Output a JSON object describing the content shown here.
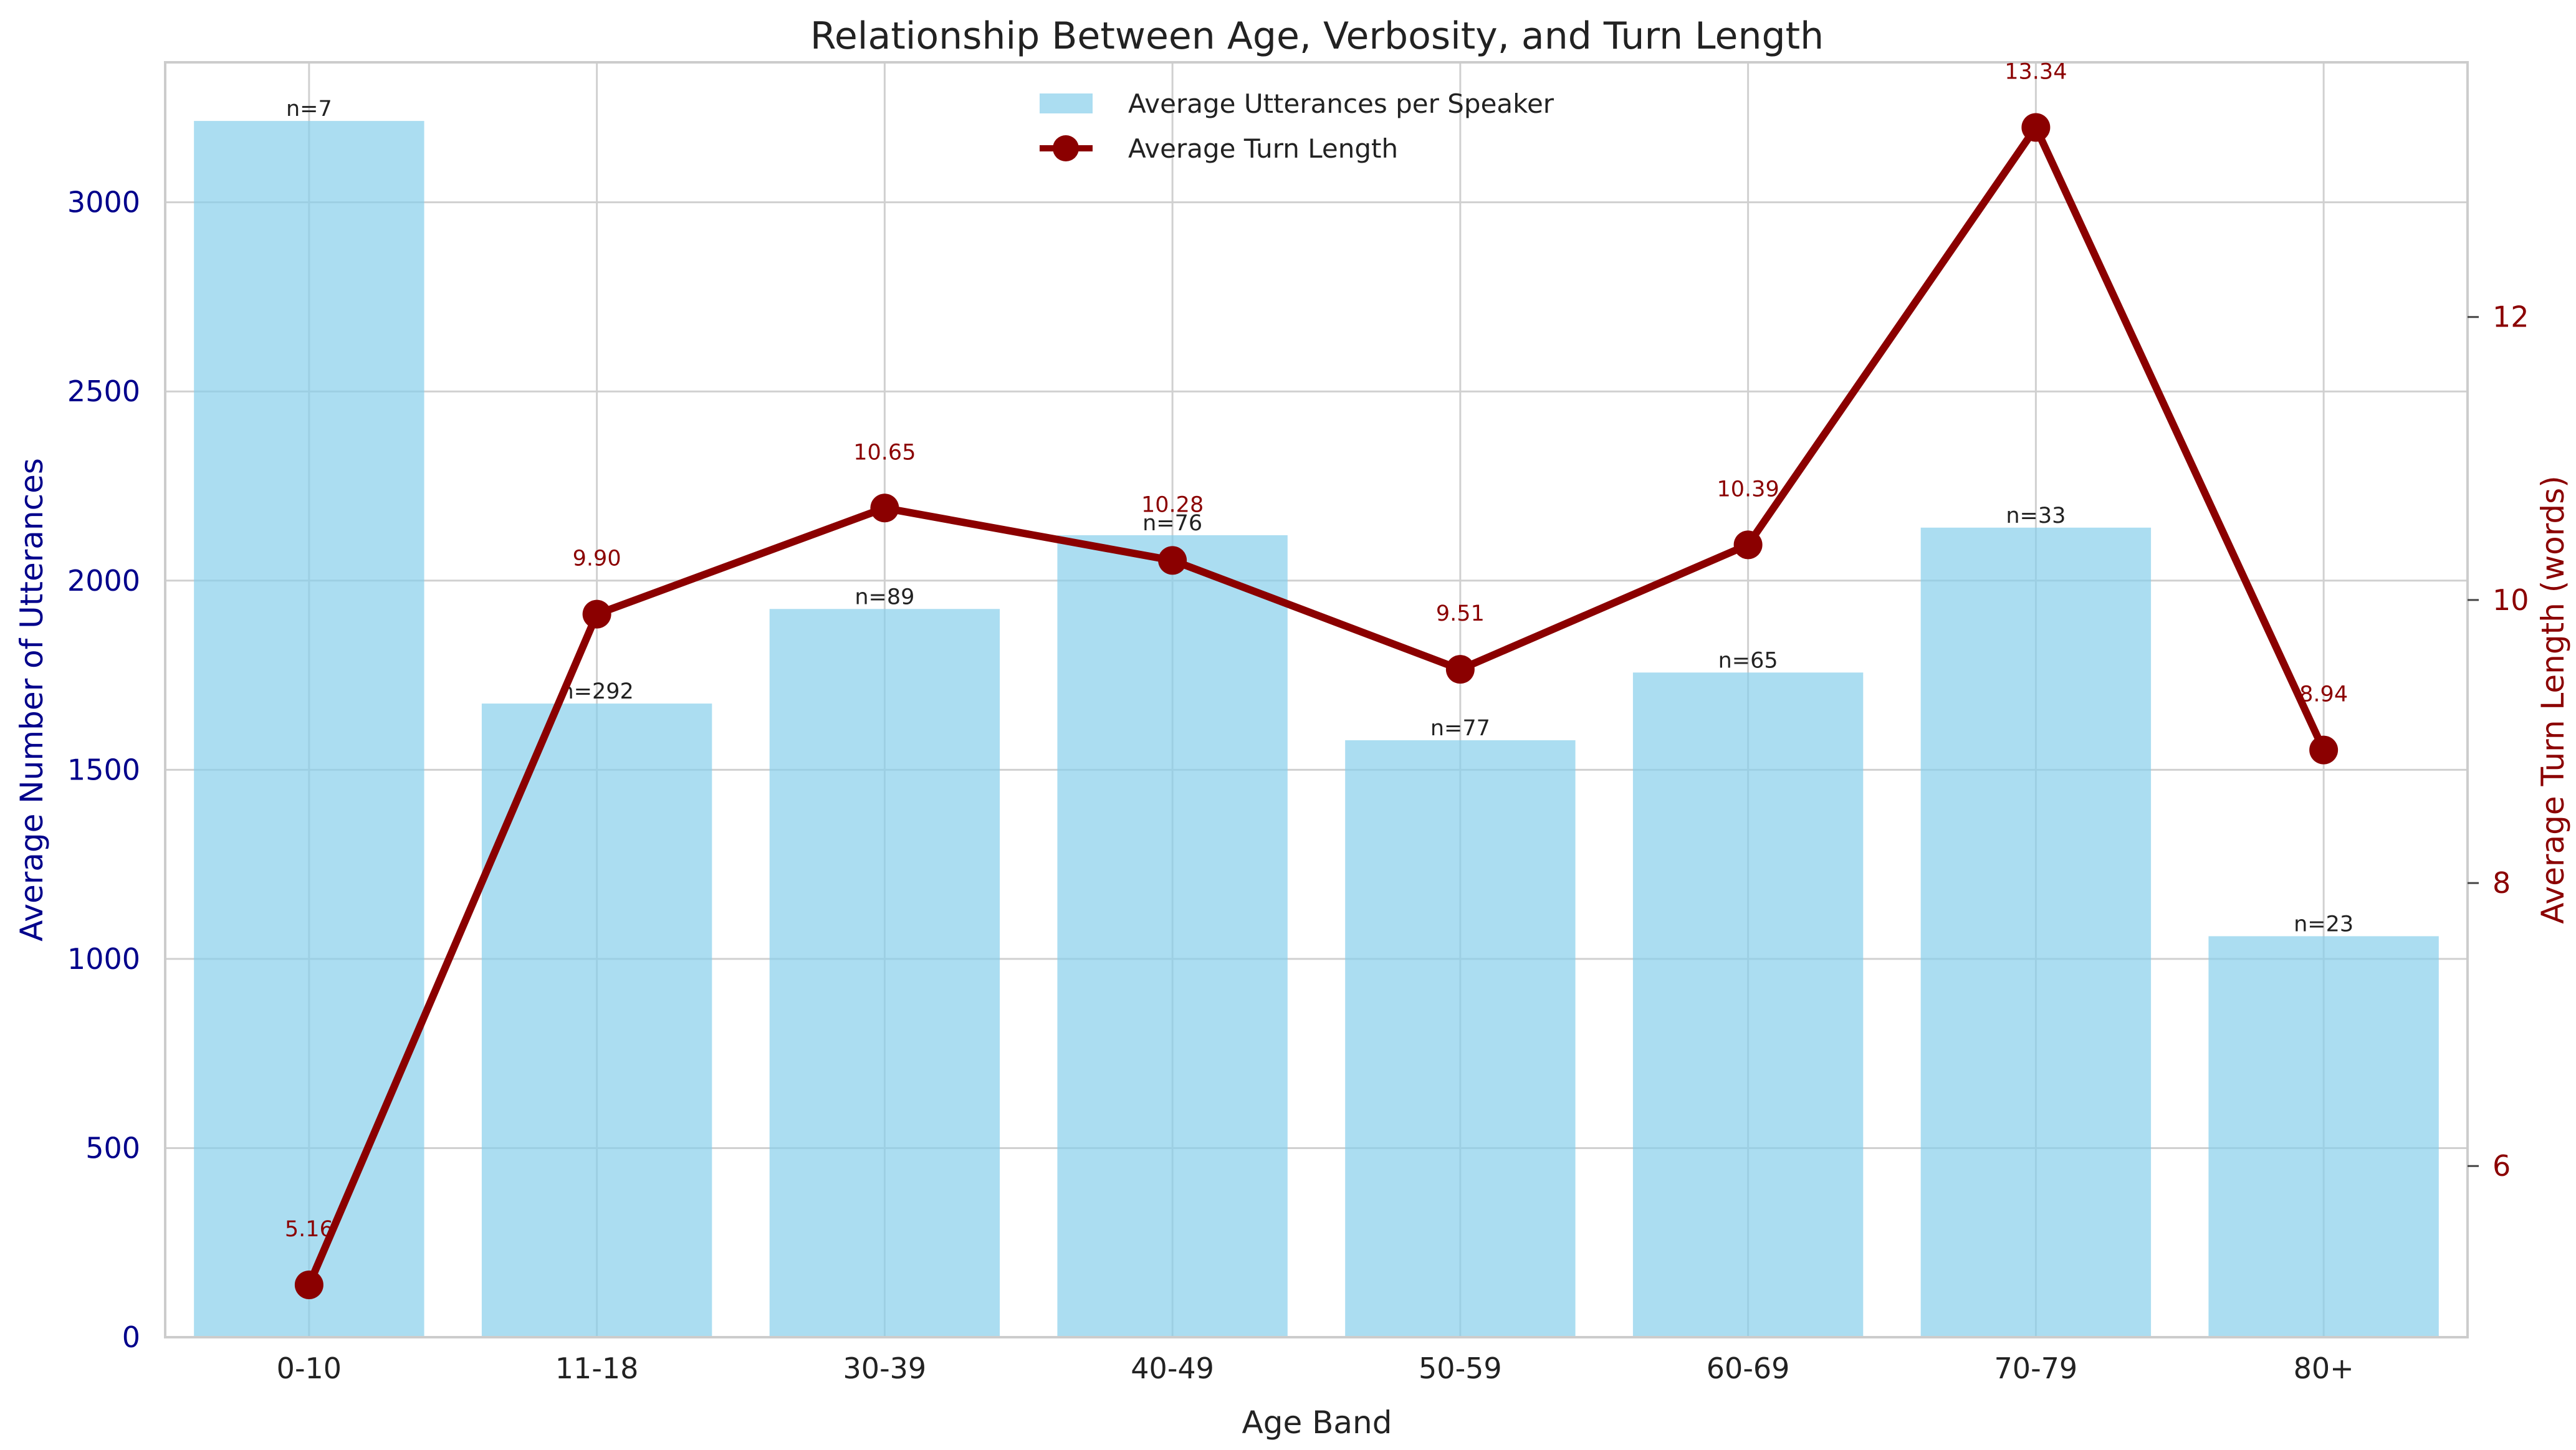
{
  "chart_data": {
    "type": "bar+line",
    "title": "Relationship Between Age, Verbosity, and Turn Length",
    "xlabel": "Age Band",
    "ylabel_left": "Average Number of Utterances",
    "ylabel_right": "Average Turn Length (words)",
    "categories": [
      "0-10",
      "11-18",
      "30-39",
      "40-49",
      "50-59",
      "60-69",
      "70-79",
      "80+"
    ],
    "bar_series": {
      "name": "Average Utterances per Speaker",
      "values": [
        3215,
        1675,
        1925,
        2120,
        1578,
        1757,
        2140,
        1060
      ],
      "labels": [
        "n=7",
        "n=292",
        "n=89",
        "n=76",
        "n=77",
        "n=65",
        "n=33",
        "n=23"
      ],
      "color": "#87CEEB"
    },
    "line_series": {
      "name": "Average Turn Length",
      "values": [
        5.16,
        9.9,
        10.65,
        10.28,
        9.51,
        10.39,
        13.34,
        8.94
      ],
      "labels": [
        "5.16",
        "9.90",
        "10.65",
        "10.28",
        "9.51",
        "10.39",
        "13.34",
        "8.94"
      ],
      "color": "#8B0000"
    },
    "left_axis": {
      "ylim": [
        0,
        3370
      ],
      "ticks": [
        0,
        500,
        1000,
        1500,
        2000,
        2500,
        3000
      ],
      "color": "#00008B"
    },
    "right_axis": {
      "ylim": [
        4.79,
        13.8
      ],
      "ticks": [
        6,
        8,
        10,
        12
      ],
      "color": "#8B0000"
    },
    "grid": true,
    "legend_position": "upper-center"
  }
}
